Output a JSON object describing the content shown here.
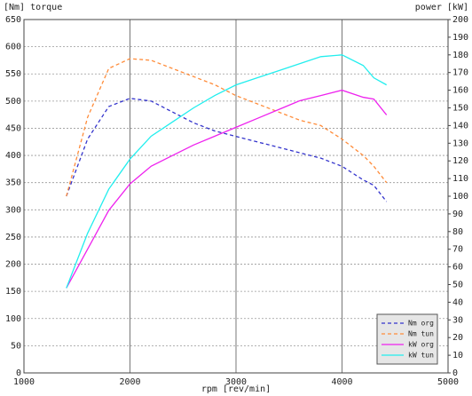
{
  "chart_data": {
    "type": "line",
    "y_label": "[Nm] torque",
    "y2_label": "power [kW]",
    "x_label": "rpm [rev/min]",
    "x": [
      1400,
      1600,
      1800,
      2000,
      2200,
      2400,
      2600,
      2800,
      3000,
      3200,
      3400,
      3600,
      3800,
      4000,
      4200,
      4300,
      4420
    ],
    "xlim": [
      1000,
      5000
    ],
    "xticks": [
      1000,
      2000,
      3000,
      4000,
      5000
    ],
    "ylim": [
      0,
      650
    ],
    "yticks": [
      0,
      50,
      100,
      150,
      200,
      250,
      300,
      350,
      400,
      450,
      500,
      550,
      600,
      650
    ],
    "y2lim": [
      0,
      200
    ],
    "y2ticks": [
      0,
      10,
      20,
      30,
      40,
      50,
      60,
      70,
      80,
      90,
      100,
      110,
      120,
      130,
      140,
      150,
      160,
      170,
      180,
      190,
      200
    ],
    "grid": true,
    "legend": "lower right",
    "series": [
      {
        "name": "Nm org",
        "color": "#3333cc",
        "style": "dashed",
        "values": [
          325,
          430,
          490,
          505,
          500,
          480,
          460,
          445,
          435,
          425,
          415,
          405,
          395,
          380,
          355,
          345,
          315
        ]
      },
      {
        "name": "Nm tun",
        "color": "#ff8c3a",
        "style": "dashed",
        "values": [
          325,
          470,
          560,
          578,
          575,
          560,
          545,
          530,
          510,
          495,
          480,
          465,
          455,
          430,
          400,
          380,
          350
        ]
      },
      {
        "name": "kW org",
        "color": "#ee22ee",
        "style": "solid",
        "axis": "y2",
        "values": [
          48,
          70,
          92,
          107,
          117,
          123,
          129,
          134,
          139,
          144,
          149,
          154,
          157,
          160,
          156,
          155,
          146
        ]
      },
      {
        "name": "kW tun",
        "color": "#22eeee",
        "style": "solid",
        "axis": "y2",
        "values": [
          48,
          79,
          104,
          121,
          134,
          142,
          150,
          157,
          163,
          167,
          171,
          175,
          179,
          180,
          174,
          167,
          163
        ]
      }
    ]
  }
}
